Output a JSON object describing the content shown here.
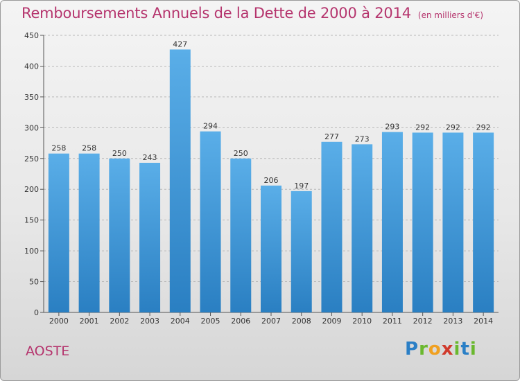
{
  "title": "Remboursements Annuels de la Dette de 2000 à 2014",
  "unit_note": "(en milliers d'€)",
  "city": "AOSTE",
  "logo": {
    "p": "P",
    "r": "r",
    "o": "o",
    "x": "x",
    "i": "i",
    "t": "t",
    "i2": "i"
  },
  "colors": {
    "bar_top": "#5aaee8",
    "bar_bottom": "#2a7fc2",
    "title": "#b5346d",
    "grid": "#b8b8b8"
  },
  "chart_data": {
    "type": "bar",
    "title": "Remboursements Annuels de la Dette de 2000 à 2014",
    "subtitle": "(en milliers d'€)",
    "xlabel": "",
    "ylabel": "",
    "categories": [
      "2000",
      "2001",
      "2002",
      "2003",
      "2004",
      "2005",
      "2006",
      "2007",
      "2008",
      "2009",
      "2010",
      "2011",
      "2012",
      "2013",
      "2014"
    ],
    "values": [
      258,
      258,
      250,
      243,
      427,
      294,
      250,
      206,
      197,
      277,
      273,
      293,
      292,
      292,
      292
    ],
    "ylim": [
      0,
      450
    ],
    "yticks": [
      0,
      50,
      100,
      150,
      200,
      250,
      300,
      350,
      400,
      450
    ],
    "grid": true,
    "data_labels": true
  }
}
